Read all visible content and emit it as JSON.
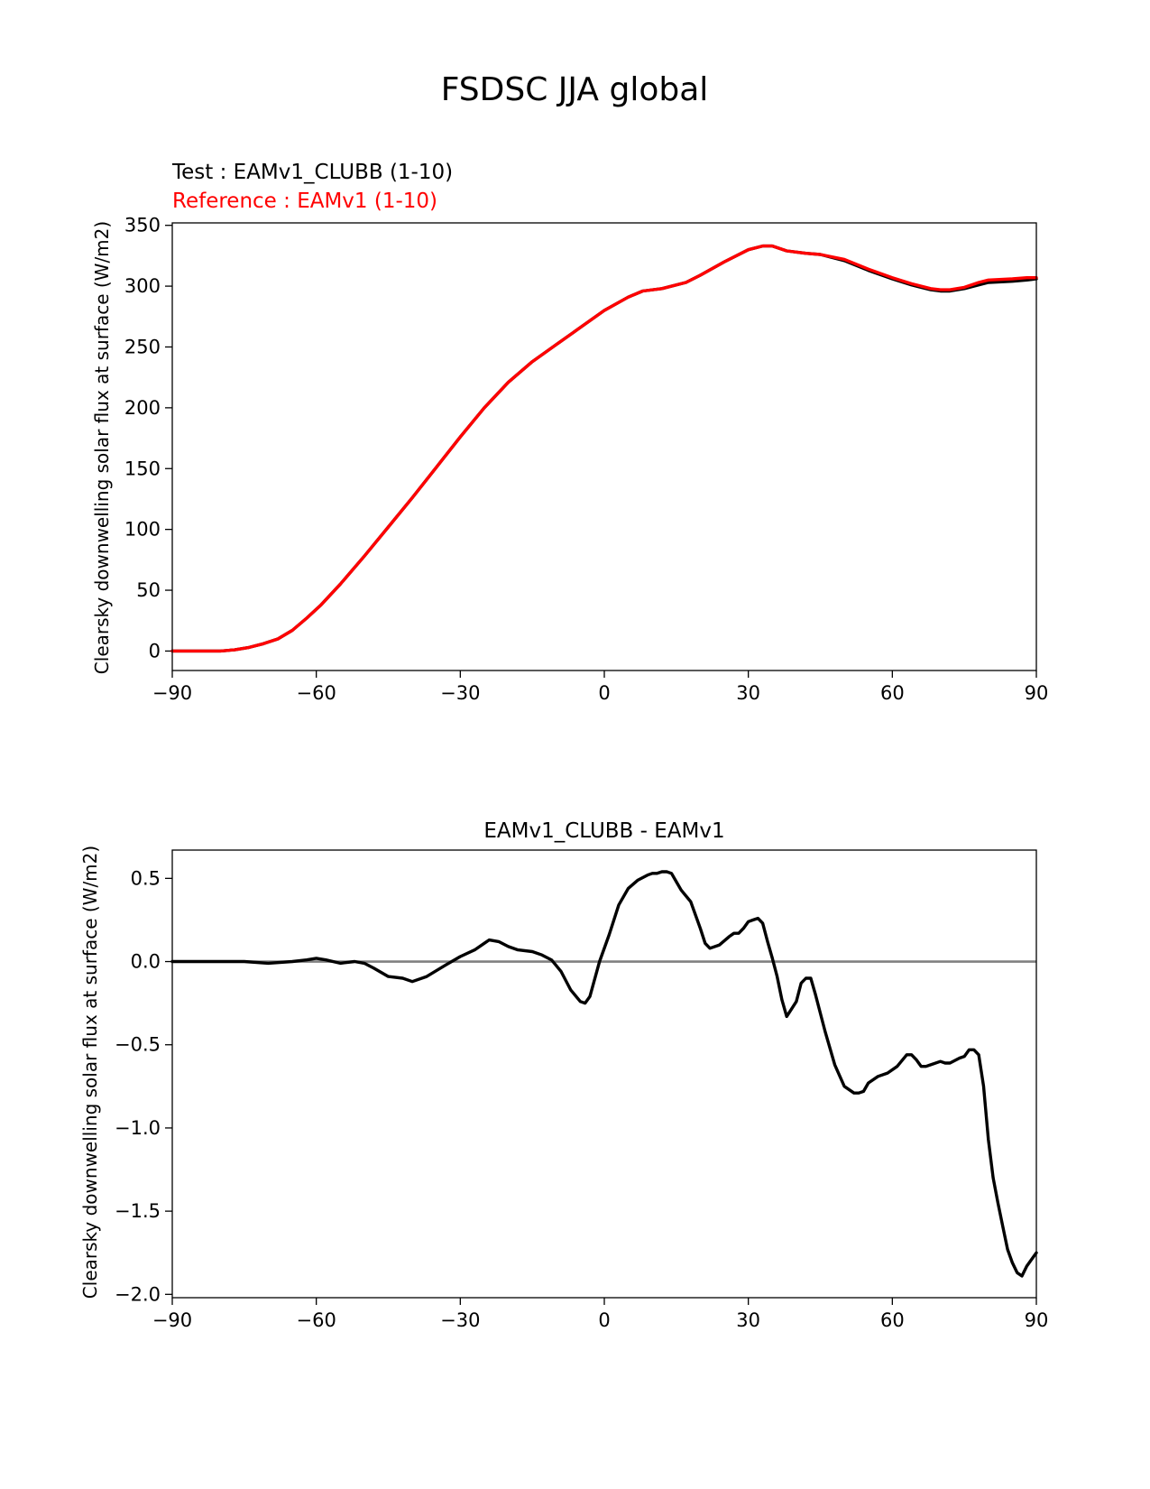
{
  "figure": {
    "title": "FSDSC JJA global"
  },
  "chart_data": [
    {
      "type": "line",
      "test_label": "Test : EAMv1_CLUBB (1-10)",
      "reference_label": "Reference : EAMv1 (1-10)",
      "xlabel": "",
      "ylabel": "Clearsky downwelling solar flux at surface (W/m2)",
      "xlim": [
        -90,
        90
      ],
      "ylim": [
        -16,
        352
      ],
      "xticks": [
        -90,
        -60,
        -30,
        0,
        30,
        60,
        90
      ],
      "xtick_labels": [
        "−90",
        "−60",
        "−30",
        "0",
        "30",
        "60",
        "90"
      ],
      "yticks": [
        0,
        50,
        100,
        150,
        200,
        250,
        300,
        350
      ],
      "ytick_labels": [
        "0",
        "50",
        "100",
        "150",
        "200",
        "250",
        "300",
        "350"
      ],
      "colors": {
        "test": "#000000",
        "reference": "#ff0000"
      },
      "series": [
        {
          "name": "Test : EAMv1_CLUBB (1-10)",
          "color": "#000000",
          "x": [
            -90,
            -85,
            -80,
            -77,
            -74,
            -71,
            -68,
            -65,
            -62,
            -59,
            -55,
            -50,
            -45,
            -40,
            -35,
            -30,
            -25,
            -20,
            -15,
            -10,
            -5,
            0,
            5,
            8,
            12,
            17,
            20,
            25,
            30,
            33,
            35,
            38,
            42,
            45,
            50,
            55,
            60,
            64,
            68,
            70,
            72,
            75,
            78,
            80,
            85,
            88,
            90
          ],
          "y": [
            0,
            0,
            0,
            1,
            3,
            6,
            10,
            17,
            27,
            38,
            55,
            78,
            102,
            126,
            151,
            176,
            200,
            221,
            238,
            252,
            266,
            280,
            291,
            296,
            298,
            303,
            309,
            320,
            330,
            333,
            333,
            329,
            327,
            326,
            321,
            313,
            306,
            301,
            297,
            296,
            296,
            298,
            301,
            303,
            304,
            305,
            306
          ]
        },
        {
          "name": "Reference : EAMv1 (1-10)",
          "color": "#ff0000",
          "x": [
            -90,
            -85,
            -80,
            -77,
            -74,
            -71,
            -68,
            -65,
            -62,
            -59,
            -55,
            -50,
            -45,
            -40,
            -35,
            -30,
            -25,
            -20,
            -15,
            -10,
            -5,
            0,
            5,
            8,
            12,
            17,
            20,
            25,
            30,
            33,
            35,
            38,
            42,
            45,
            50,
            55,
            60,
            64,
            68,
            70,
            72,
            75,
            78,
            80,
            85,
            88,
            90
          ],
          "y": [
            0,
            0,
            0,
            1,
            3,
            6,
            10,
            17,
            27,
            38,
            55,
            78,
            102,
            126,
            151,
            176,
            200,
            221,
            238,
            252,
            266,
            280,
            291,
            296,
            298,
            303,
            309,
            320,
            330,
            333,
            333,
            329,
            327,
            326,
            322,
            314,
            307,
            302,
            298,
            297,
            297,
            299,
            303,
            305,
            306,
            307,
            307
          ]
        }
      ]
    },
    {
      "type": "line",
      "title": "EAMv1_CLUBB - EAMv1",
      "xlabel": "",
      "ylabel": "Clearsky downwelling solar flux at surface (W/m2)",
      "xlim": [
        -90,
        90
      ],
      "ylim": [
        -2.02,
        0.67
      ],
      "xticks": [
        -90,
        -60,
        -30,
        0,
        30,
        60,
        90
      ],
      "xtick_labels": [
        "−90",
        "−60",
        "−30",
        "0",
        "30",
        "60",
        "90"
      ],
      "yticks": [
        0.5,
        0.0,
        -0.5,
        -1.0,
        -1.5,
        -2.0
      ],
      "ytick_labels": [
        "0.5",
        "0.0",
        "−0.5",
        "−1.0",
        "−1.5",
        "−2.0"
      ],
      "zero_line": {
        "y": 0,
        "color": "#808080"
      },
      "series": [
        {
          "name": "EAMv1_CLUBB - EAMv1",
          "color": "#000000",
          "x": [
            -90,
            -80,
            -75,
            -70,
            -65,
            -62,
            -60,
            -58,
            -55,
            -52,
            -50,
            -48,
            -45,
            -42,
            -40,
            -37,
            -33,
            -30,
            -27,
            -25,
            -24,
            -22,
            -20,
            -18,
            -15,
            -13,
            -11,
            -9,
            -7,
            -5,
            -4,
            -3,
            -1,
            1,
            3,
            5,
            7,
            9,
            10,
            11,
            12,
            13,
            14,
            15,
            16,
            18,
            20,
            21,
            22,
            24,
            26,
            27,
            28,
            29,
            30,
            31,
            32,
            33,
            34,
            35,
            36,
            37,
            38,
            40,
            41,
            42,
            43,
            44,
            46,
            48,
            50,
            52,
            53,
            54,
            55,
            57,
            59,
            61,
            63,
            64,
            65,
            66,
            67,
            68,
            70,
            71,
            72,
            74,
            75,
            76,
            77,
            78,
            79,
            80,
            81,
            82,
            83,
            84,
            85,
            86,
            87,
            88,
            89,
            90
          ],
          "y": [
            0.0,
            0.0,
            0.0,
            -0.01,
            0.0,
            0.01,
            0.02,
            0.01,
            -0.01,
            0.0,
            -0.01,
            -0.04,
            -0.09,
            -0.1,
            -0.12,
            -0.09,
            -0.02,
            0.03,
            0.07,
            0.11,
            0.13,
            0.12,
            0.09,
            0.07,
            0.06,
            0.04,
            0.01,
            -0.06,
            -0.17,
            -0.24,
            -0.25,
            -0.21,
            0.0,
            0.16,
            0.34,
            0.44,
            0.49,
            0.52,
            0.53,
            0.53,
            0.54,
            0.54,
            0.53,
            0.48,
            0.43,
            0.36,
            0.2,
            0.11,
            0.08,
            0.1,
            0.15,
            0.17,
            0.17,
            0.2,
            0.24,
            0.25,
            0.26,
            0.23,
            0.12,
            0.02,
            -0.09,
            -0.23,
            -0.33,
            -0.24,
            -0.13,
            -0.1,
            -0.1,
            -0.2,
            -0.42,
            -0.62,
            -0.75,
            -0.79,
            -0.79,
            -0.78,
            -0.73,
            -0.69,
            -0.67,
            -0.63,
            -0.56,
            -0.56,
            -0.59,
            -0.63,
            -0.63,
            -0.62,
            -0.6,
            -0.61,
            -0.61,
            -0.58,
            -0.57,
            -0.53,
            -0.53,
            -0.56,
            -0.75,
            -1.07,
            -1.3,
            -1.45,
            -1.59,
            -1.73,
            -1.81,
            -1.87,
            -1.89,
            -1.83,
            -1.79,
            -1.75
          ]
        }
      ]
    }
  ]
}
